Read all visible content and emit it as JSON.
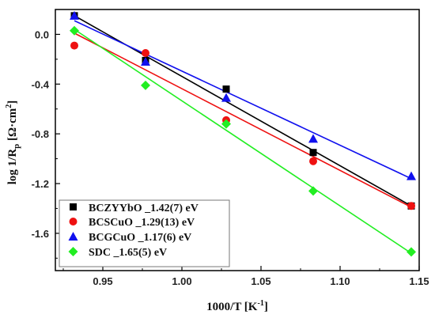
{
  "chart_data": {
    "type": "scatter",
    "xlim": [
      0.92,
      1.15
    ],
    "ylim": [
      -1.9,
      0.2
    ],
    "x_ticks": [
      "0.95",
      "1.00",
      "1.05",
      "1.10",
      "1.15"
    ],
    "y_ticks": [
      "0.0",
      "-0.4",
      "-0.8",
      "-1.2",
      "-1.6"
    ],
    "x_tick_values": [
      0.95,
      1.0,
      1.05,
      1.1,
      1.15
    ],
    "y_tick_values": [
      0.0,
      -0.4,
      -0.8,
      -1.2,
      -1.6
    ],
    "xlabel_main": "1000/T [K",
    "xlabel_sup": "-1",
    "xlabel_end": "]",
    "ylabel_main": "log 1/R",
    "ylabel_sub": "p",
    "ylabel_rest": " [Ω·cm",
    "ylabel_sup": "2",
    "ylabel_end": "]",
    "legend_position": "bottom-left",
    "grid": false,
    "series": [
      {
        "name": "BCZYYbO _1.42(7) eV",
        "marker": "square",
        "color": "#000000",
        "x": [
          0.932,
          0.977,
          1.028,
          1.083,
          1.145
        ],
        "y": [
          0.15,
          -0.21,
          -0.44,
          -0.95,
          -1.38
        ],
        "fit": [
          [
            0.932,
            0.15
          ],
          [
            1.145,
            -1.38
          ]
        ]
      },
      {
        "name": "BCSCuO _1.29(13) eV",
        "marker": "circle",
        "color": "#ee1111",
        "x": [
          0.932,
          0.977,
          1.028,
          1.083,
          1.145
        ],
        "y": [
          -0.09,
          -0.15,
          -0.69,
          -1.02,
          -1.38
        ],
        "fit": [
          [
            0.932,
            0.01
          ],
          [
            1.145,
            -1.39
          ]
        ]
      },
      {
        "name": "BCGCuO _1.17(6) eV",
        "marker": "triangle",
        "color": "#1111ee",
        "x": [
          0.932,
          0.977,
          1.028,
          1.083,
          1.145
        ],
        "y": [
          0.15,
          -0.22,
          -0.51,
          -0.84,
          -1.14
        ],
        "fit": [
          [
            0.932,
            0.11
          ],
          [
            1.145,
            -1.16
          ]
        ]
      },
      {
        "name": "SDC _1.65(5) eV",
        "marker": "diamond",
        "color": "#22ee22",
        "x": [
          0.932,
          0.977,
          1.028,
          1.083,
          1.145
        ],
        "y": [
          0.03,
          -0.41,
          -0.72,
          -1.26,
          -1.75
        ],
        "fit": [
          [
            0.932,
            0.04
          ],
          [
            1.145,
            -1.76
          ]
        ]
      }
    ]
  }
}
